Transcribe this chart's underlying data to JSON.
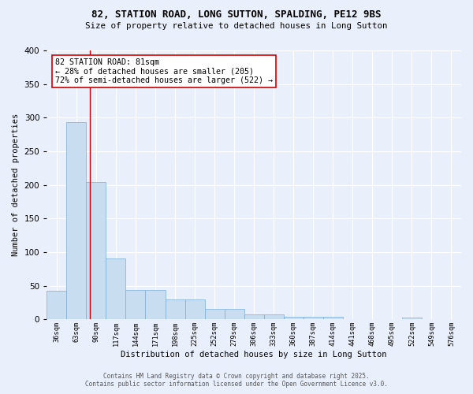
{
  "title_line1": "82, STATION ROAD, LONG SUTTON, SPALDING, PE12 9BS",
  "title_line2": "Size of property relative to detached houses in Long Sutton",
  "xlabel": "Distribution of detached houses by size in Long Sutton",
  "ylabel": "Number of detached properties",
  "bar_values": [
    42,
    293,
    204,
    91,
    44,
    44,
    30,
    30,
    15,
    15,
    7,
    7,
    4,
    4,
    4,
    0,
    0,
    0,
    3,
    0,
    0
  ],
  "categories": [
    "36sqm",
    "63sqm",
    "90sqm",
    "117sqm",
    "144sqm",
    "171sqm",
    "198sqm",
    "225sqm",
    "252sqm",
    "279sqm",
    "306sqm",
    "333sqm",
    "360sqm",
    "387sqm",
    "414sqm",
    "441sqm",
    "468sqm",
    "495sqm",
    "522sqm",
    "549sqm",
    "576sqm"
  ],
  "bar_color": "#c9ddf0",
  "bar_edge_color": "#7badd4",
  "background_color": "#eaf0fb",
  "grid_color": "#ffffff",
  "vline_color": "#cc0000",
  "annotation_text": "82 STATION ROAD: 81sqm\n← 28% of detached houses are smaller (205)\n72% of semi-detached houses are larger (522) →",
  "annotation_box_color": "#ffffff",
  "annotation_box_edge": "#cc0000",
  "annotation_fontsize": 7.2,
  "copyright_text": "Contains HM Land Registry data © Crown copyright and database right 2025.\nContains public sector information licensed under the Open Government Licence v3.0.",
  "ylim": [
    0,
    400
  ],
  "yticks": [
    0,
    50,
    100,
    150,
    200,
    250,
    300,
    350,
    400
  ]
}
